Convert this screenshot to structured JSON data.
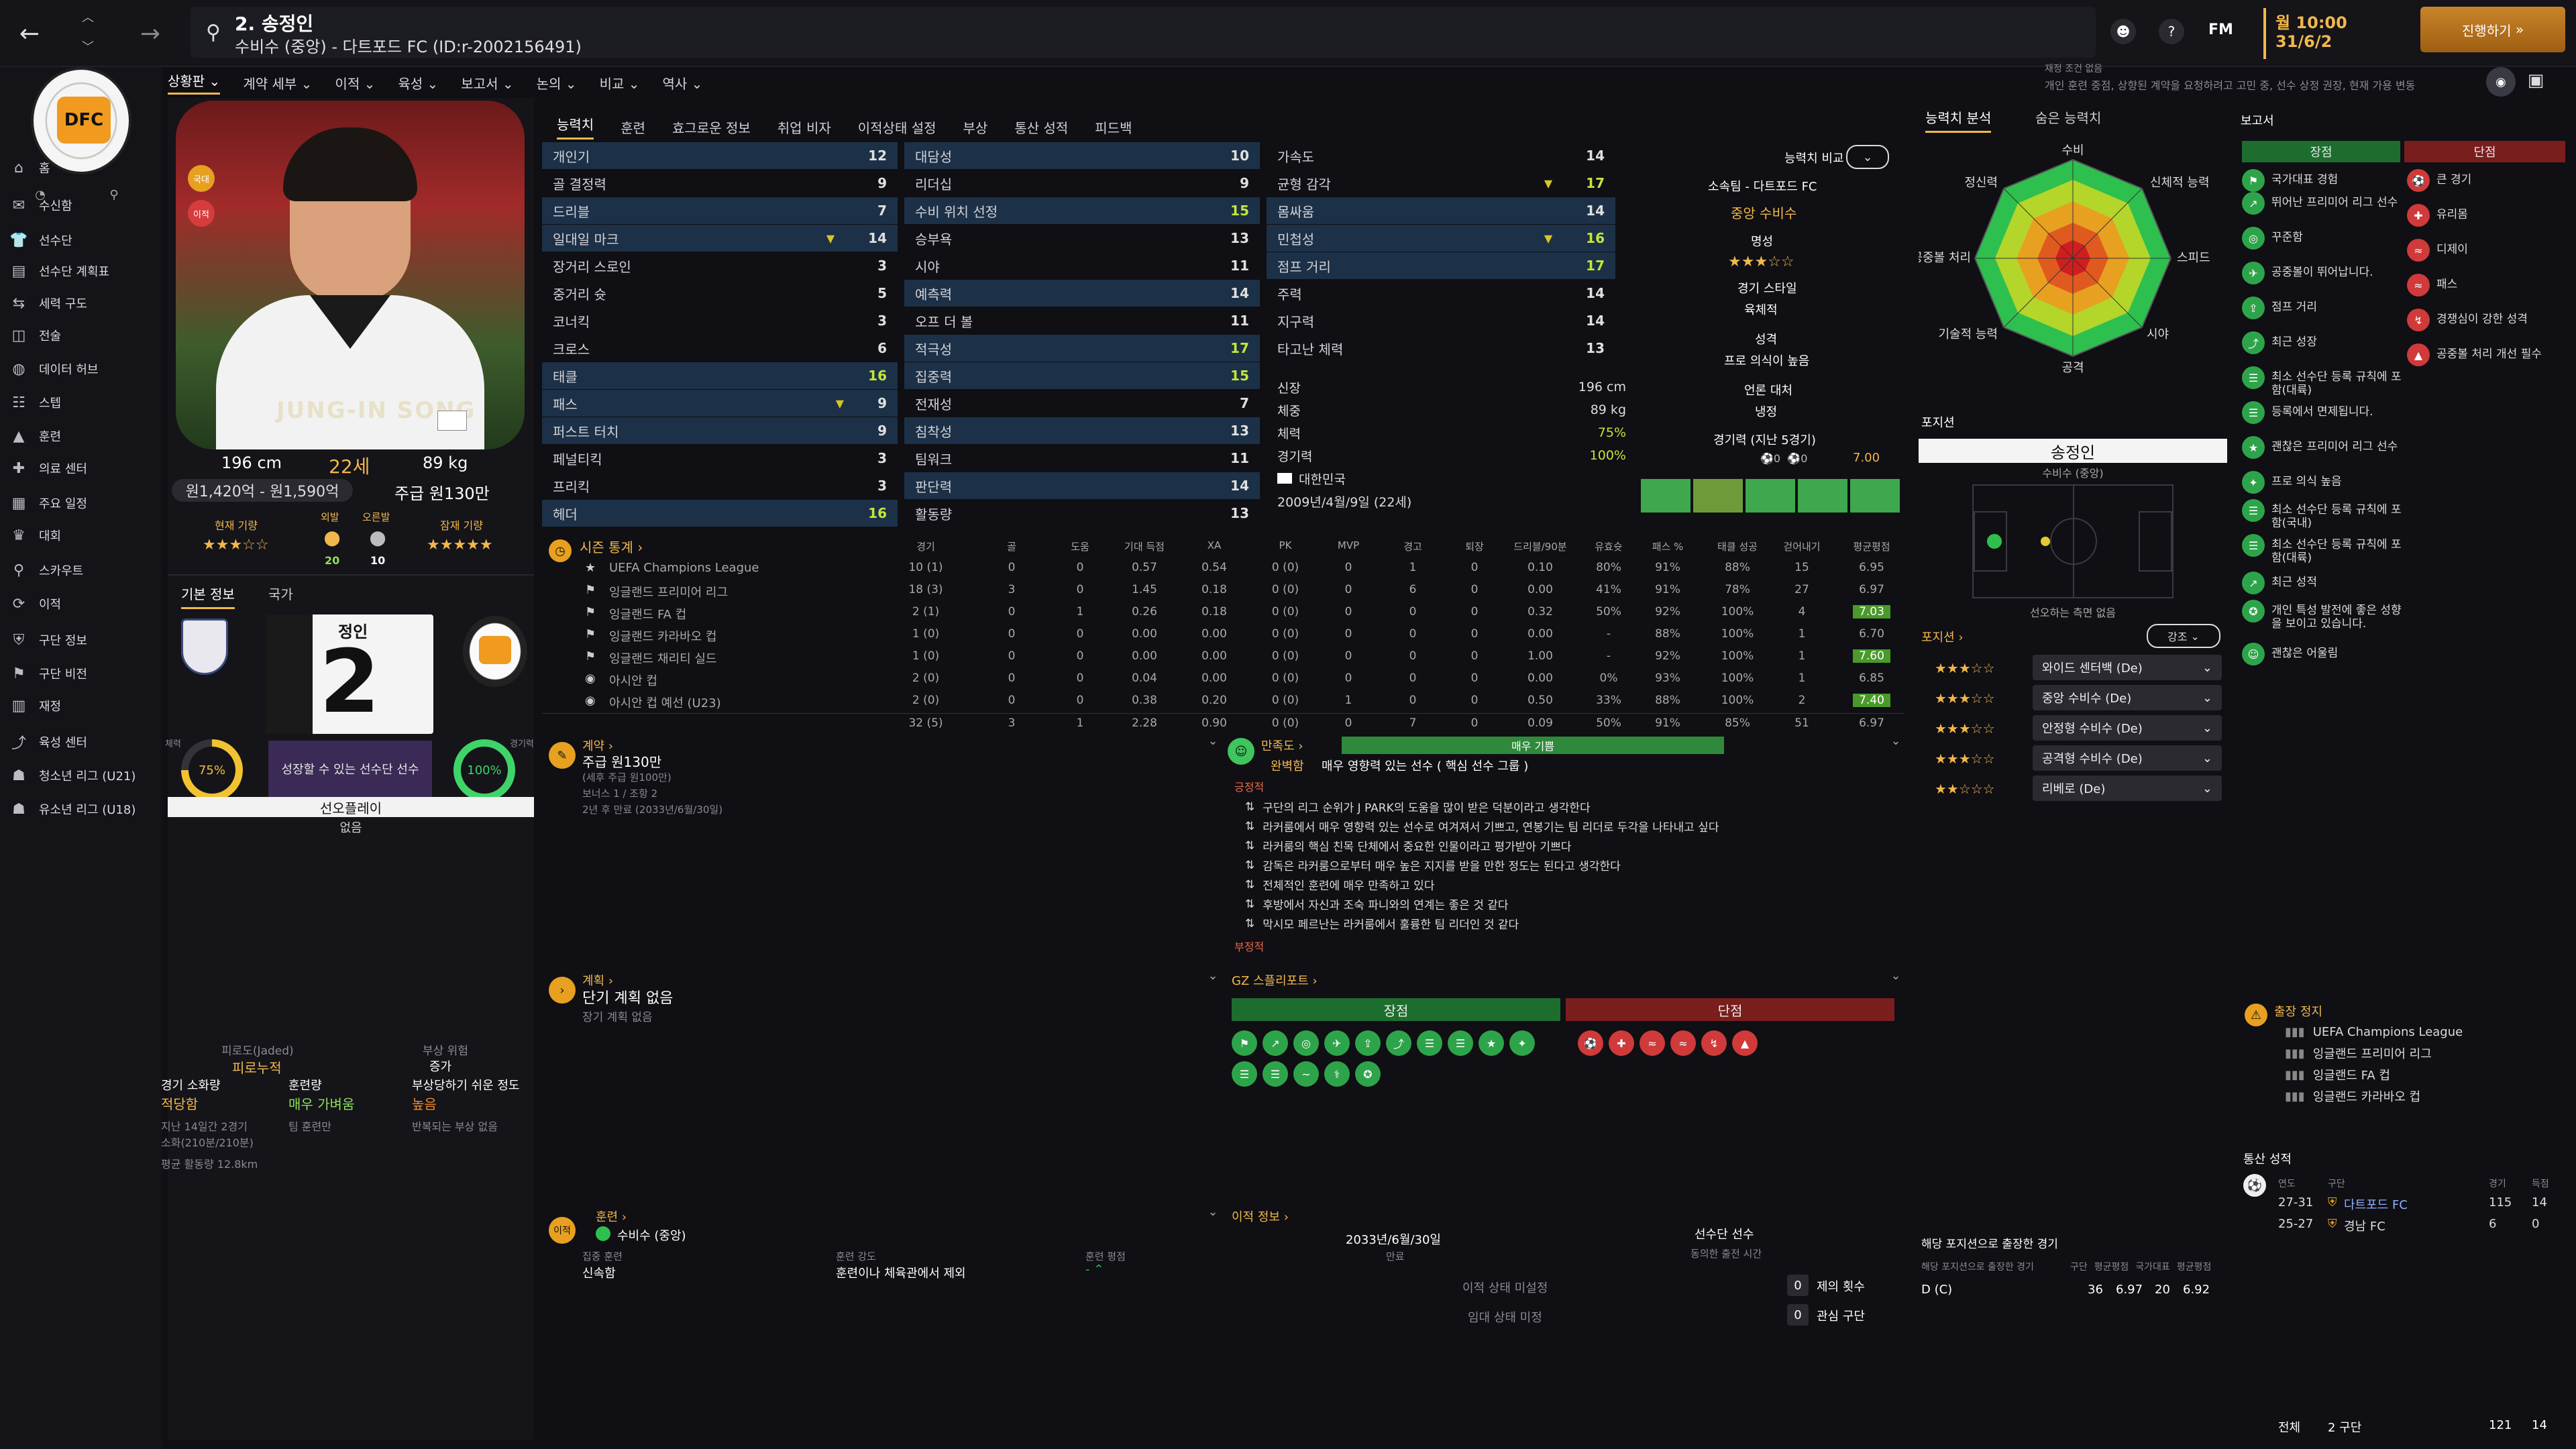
{
  "header": {
    "player_title": "2. 송정인",
    "player_subtitle": "수비수 (중앙) - 다트포드 FC (ID:r-2002156491)",
    "date_time": "월 10:00",
    "date": "31/6/2",
    "continue_label": "진행하기",
    "fm_label": "FM",
    "notice_line1": "재정 조건 없음",
    "notice_line2": "개인 훈련 중점, 상향된 계약을 요청하려고 고민 중, 선수 상정 권장, 현재 가용 변동"
  },
  "subnav": [
    "상황판",
    "계약 세부",
    "이적",
    "육성",
    "보고서",
    "논의",
    "비교",
    "역사"
  ],
  "sidebar": {
    "items": [
      {
        "icon": "home-icon",
        "label": "홈"
      },
      {
        "icon": "inbox-icon",
        "label": "수신함"
      },
      {
        "icon": "shirt-icon",
        "label": "선수단"
      },
      {
        "icon": "plan-icon",
        "label": "선수단 계획표"
      },
      {
        "icon": "tactics-icon",
        "label": "세력 구도"
      },
      {
        "icon": "tactic-board-icon",
        "label": "전술"
      },
      {
        "icon": "data-icon",
        "label": "데이터 허브"
      },
      {
        "icon": "staff-icon",
        "label": "스텝"
      },
      {
        "icon": "training-icon",
        "label": "훈련"
      },
      {
        "icon": "medical-icon",
        "label": "의료 센터"
      },
      {
        "icon": "calendar-icon",
        "label": "주요 일정"
      },
      {
        "icon": "trophy-icon",
        "label": "대회"
      },
      {
        "icon": "scouting-icon",
        "label": "스카우트"
      },
      {
        "icon": "transfer-icon",
        "label": "이적"
      },
      {
        "icon": "club-icon",
        "label": "구단 정보"
      },
      {
        "icon": "vision-icon",
        "label": "구단 비전"
      },
      {
        "icon": "finance-icon",
        "label": "재정"
      },
      {
        "icon": "dev-icon",
        "label": "육성 센터"
      },
      {
        "icon": "u21-icon",
        "label": "청소년 리그 (U21)"
      },
      {
        "icon": "u18-icon",
        "label": "유소년 리그 (U18)"
      }
    ]
  },
  "player": {
    "shirt_name": "JUNG-IN SONG",
    "height": "196 cm",
    "age": "22세",
    "weight": "89 kg",
    "value_range": "원1,420억 - 원1,590억",
    "wage": "주급 원130만",
    "current_ability_label": "현재 기량",
    "potential_ability_label": "잠재 기량",
    "badge1_label": "외발",
    "badge1_value": "20",
    "badge2_label": "오른발",
    "badge2_value": "10",
    "tab_basic": "기본 정보",
    "tab_nation": "국가",
    "shirt_number": "2",
    "shirt_top_name": "정인",
    "fitness_label": "체력",
    "fitness_value": "75%",
    "match_label": "경기력",
    "match_value": "100%",
    "status_text": "성장할 수 있는 선수단 선수",
    "role_label": "선오플레이",
    "role_value": "없음",
    "fatigue_label": "피로도(Jaded)",
    "fatigue_value": "피로누적",
    "injury_risk_label": "부상 위험",
    "injury_risk_value": "증가",
    "load_label": "경기 소화량",
    "load_value": "적당함",
    "training_label": "훈련량",
    "training_value": "매우 가벼움",
    "injury_prone_label": "부상당하기 쉬운 정도",
    "injury_prone_value": "높음",
    "detail1": "지난 14일간 2경기",
    "detail2": "소화(210분/210분)",
    "detail3": "평균 활동량 12.8km",
    "detail4": "팀 훈련만",
    "detail5": "반복되는 부상 없음"
  },
  "tabs": [
    "능력치",
    "훈련",
    "효그로운 정보",
    "취업 비자",
    "이적상태 설정",
    "부상",
    "통산 성적",
    "피드백"
  ],
  "attributes": {
    "technical": [
      {
        "name": "개인기",
        "value": "12",
        "hl": true
      },
      {
        "name": "골 결정력",
        "value": "9"
      },
      {
        "name": "드리블",
        "value": "7",
        "hl": true
      },
      {
        "name": "일대일 마크",
        "value": "14",
        "hl": true,
        "arrow": true
      },
      {
        "name": "장거리 스로인",
        "value": "3"
      },
      {
        "name": "중거리 슛",
        "value": "5"
      },
      {
        "name": "코너킥",
        "value": "3"
      },
      {
        "name": "크로스",
        "value": "6"
      },
      {
        "name": "태클",
        "value": "16",
        "hl": true,
        "g": true
      },
      {
        "name": "패스",
        "value": "9",
        "hl": true,
        "arrow": true
      },
      {
        "name": "퍼스트 터치",
        "value": "9",
        "hl": true
      },
      {
        "name": "페널티킥",
        "value": "3"
      },
      {
        "name": "프리킥",
        "value": "3"
      },
      {
        "name": "헤더",
        "value": "16",
        "hl": true,
        "g": true
      }
    ],
    "mental": [
      {
        "name": "대담성",
        "value": "10",
        "hl": true
      },
      {
        "name": "리더십",
        "value": "9"
      },
      {
        "name": "수비 위치 선정",
        "value": "15",
        "hl": true,
        "g": true
      },
      {
        "name": "승부욕",
        "value": "13"
      },
      {
        "name": "시야",
        "value": "11"
      },
      {
        "name": "예측력",
        "value": "14",
        "hl": true
      },
      {
        "name": "오프 더 볼",
        "value": "11"
      },
      {
        "name": "적극성",
        "value": "17",
        "hl": true,
        "g": true
      },
      {
        "name": "집중력",
        "value": "15",
        "hl": true,
        "g": true
      },
      {
        "name": "전재성",
        "value": "7"
      },
      {
        "name": "침착성",
        "value": "13",
        "hl": true
      },
      {
        "name": "팀워크",
        "value": "11"
      },
      {
        "name": "판단력",
        "value": "14",
        "hl": true
      },
      {
        "name": "활동량",
        "value": "13"
      }
    ],
    "physical": [
      {
        "name": "가속도",
        "value": "14"
      },
      {
        "name": "균형 감각",
        "value": "17",
        "g": true,
        "arrow": true
      },
      {
        "name": "몸싸움",
        "value": "14",
        "hl": true
      },
      {
        "name": "민첩성",
        "value": "16",
        "hl": true,
        "g": true,
        "arrow": true
      },
      {
        "name": "점프 거리",
        "value": "17",
        "hl": true,
        "g": true
      },
      {
        "name": "주력",
        "value": "14"
      },
      {
        "name": "지구력",
        "value": "14"
      },
      {
        "name": "타고난 체력",
        "value": "13"
      }
    ],
    "info": [
      {
        "label": "신장",
        "value": "196 cm"
      },
      {
        "label": "체중",
        "value": "89 kg"
      },
      {
        "label": "체력",
        "value": "75%"
      },
      {
        "label": "경기력",
        "value": "100%"
      },
      {
        "label": "nation",
        "value": "대한민국"
      },
      {
        "label": "dob",
        "value": "2009년/4월/9일 (22세)"
      }
    ]
  },
  "compare": {
    "title": "능력치 비교",
    "club": "소속팀 - 다트포드 FC",
    "position": "중앙 수비수",
    "fame_label": "명성",
    "style_label": "경기 스타일",
    "style_value": "육체적",
    "personality_label": "성격",
    "personality_value": "프로 의식이 높음",
    "media_label": "언론 대처",
    "media_value": "냉정",
    "form_label": "경기력 (지난 5경기)",
    "form_c1": "0",
    "form_c2": "0",
    "form_avg": "7.00"
  },
  "radar": {
    "tab1": "능력치 분석",
    "tab2": "숨은 능력치",
    "labels": [
      "수비",
      "신체적 능력",
      "스피드",
      "시야",
      "공격",
      "기술적 능력",
      "공중볼 처리",
      "정신력"
    ]
  },
  "position_panel": {
    "title": "포지션",
    "name": "송정인",
    "role": "수비수 (중앙)",
    "caption": "선오하는 측면 없음",
    "list_title": "포지션",
    "filter_label": "강조",
    "roles": [
      {
        "name": "와이드 센터백 (De)",
        "stars": "★★★☆☆"
      },
      {
        "name": "중앙 수비수 (De)",
        "stars": "★★★☆☆"
      },
      {
        "name": "안정형 수비수 (De)",
        "stars": "★★★☆☆"
      },
      {
        "name": "공격형 수비수 (De)",
        "stars": "★★★☆☆"
      },
      {
        "name": "리베로 (De)",
        "stars": "★★☆☆☆"
      }
    ],
    "experience_title": "해당 포지션으로 출장한 경기",
    "experience_sub": "해당 포지션으로 출장한 경기",
    "exp_cols": [
      "구단",
      "평균평점",
      "국가대표",
      "평균평점"
    ],
    "exp_row": {
      "pos": "D (C)",
      "apps": "36",
      "rating": "6.97",
      "intl": "20",
      "intl_rating": "6.92"
    }
  },
  "report": {
    "title": "보고서",
    "pros_label": "장점",
    "cons_label": "단점",
    "pros": [
      "국가대표 경험",
      "뛰어난 프리미어 리그 선수",
      "꾸준함",
      "공중볼이 뛰어납니다.",
      "점프 거리",
      "최근 성장",
      "최소 선수단 등록 규칙에 포함(대륙)",
      "등록에서 면제됩니다.",
      "괜찮은 프리미어 리그 선수",
      "프로 의식 높음",
      "최소 선수단 등록 규칙에 포함(국내)",
      "최소 선수단 등록 규칙에 포함(대륙)",
      "최근 성적",
      "개인 특성 발전에 좋은 성향을 보이고 있습니다.",
      "괜찮은 어울림"
    ],
    "cons": [
      "큰 경기",
      "유리몸",
      "디제이",
      "패스",
      "경쟁심이 강한 성격",
      "공중볼 처리 개선 필수"
    ]
  },
  "stats": {
    "title": "시즌 통계",
    "cols": [
      "경기",
      "골",
      "도움",
      "기대 득점",
      "XA",
      "PK",
      "MVP",
      "경고",
      "퇴장",
      "드리블/90분",
      "유효슛",
      "패스 %",
      "태클 성공",
      "걷어내기",
      "평균평점"
    ],
    "rows": [
      {
        "comp": "UEFA Champions League",
        "v": [
          "10 (1)",
          "0",
          "0",
          "0.57",
          "0.54",
          "0 (0)",
          "0",
          "1",
          "0",
          "0.10",
          "80%",
          "91%",
          "88%",
          "15",
          "6.95"
        ]
      },
      {
        "comp": "잉글랜드 프리미어 리그",
        "v": [
          "18 (3)",
          "3",
          "0",
          "1.45",
          "0.18",
          "0 (0)",
          "0",
          "6",
          "0",
          "0.00",
          "41%",
          "91%",
          "78%",
          "27",
          "6.97"
        ]
      },
      {
        "comp": "잉글랜드 FA 컵",
        "v": [
          "2 (1)",
          "0",
          "1",
          "0.26",
          "0.18",
          "0 (0)",
          "0",
          "0",
          "0",
          "0.32",
          "50%",
          "92%",
          "100%",
          "4",
          "7.03"
        ]
      },
      {
        "comp": "잉글랜드 카라바오 컵",
        "v": [
          "1 (0)",
          "0",
          "0",
          "0.00",
          "0.00",
          "0 (0)",
          "0",
          "0",
          "0",
          "0.00",
          "-",
          "88%",
          "100%",
          "1",
          "6.70"
        ]
      },
      {
        "comp": "잉글랜드 채리티 실드",
        "v": [
          "1 (0)",
          "0",
          "0",
          "0.00",
          "0.00",
          "0 (0)",
          "0",
          "0",
          "0",
          "1.00",
          "-",
          "92%",
          "100%",
          "1",
          "7.60"
        ]
      },
      {
        "comp": "아시안 컵",
        "v": [
          "2 (0)",
          "0",
          "0",
          "0.04",
          "0.00",
          "0 (0)",
          "0",
          "0",
          "0",
          "0.00",
          "0%",
          "93%",
          "100%",
          "1",
          "6.85"
        ]
      },
      {
        "comp": "아시안 컵 예선 (U23)",
        "v": [
          "2 (0)",
          "0",
          "0",
          "0.38",
          "0.20",
          "0 (0)",
          "1",
          "0",
          "0",
          "0.50",
          "33%",
          "88%",
          "100%",
          "2",
          "7.40"
        ]
      }
    ],
    "total": [
      "32 (5)",
      "3",
      "1",
      "2.28",
      "0.90",
      "0 (0)",
      "0",
      "7",
      "0",
      "0.09",
      "50%",
      "91%",
      "85%",
      "51",
      "6.97"
    ]
  },
  "contract": {
    "title": "계약",
    "wage": "주급 원130만",
    "wage_sub": "(세후 주급 원100만)",
    "bonus": "보너스 1 / 조항 2",
    "expiry": "2년 후 만료 (2033년/6월/30일)"
  },
  "satisfaction": {
    "title": "만족도",
    "level": "매우 기쁨",
    "summary_label": "완벽함",
    "summary": "매우 영향력 있는 선수 ( 핵심 선수 그룹 )",
    "positive_label": "긍정적",
    "negative_label": "부정적",
    "items": [
      "구단의 리그 순위가 J PARK의 도움을 많이 받은 덕분이라고 생각한다",
      "라커룸에서 매우 영향력 있는 선수로 여겨져서 기쁘고, 연봉기는 팀 리더로 두각을 나타내고 싶다",
      "라커룸의 핵심 친목 단체에서 중요한 인물이라고 평가받아 기쁘다",
      "감독은 라커룸으로부터 매우 높은 지지를 받을 만한 정도는 된다고 생각한다",
      "전체적인 훈련에 매우 만족하고 있다",
      "후방에서 자신과 조숙 파니와의 연계는 좋은 것 같다",
      "막시모 페르난는 라커룸에서 훌륭한 팀 리더인 것 같다"
    ]
  },
  "plan": {
    "title": "계획",
    "short": "단기 계획 없음",
    "long": "장기 계획 없음"
  },
  "scout": {
    "title": "GZ 스플리포트",
    "pros": "장점",
    "cons": "단점"
  },
  "training": {
    "title": "훈련",
    "position": "수비수 (중앙)",
    "focus_label": "집중 훈련",
    "focus_value": "신속함",
    "intensity_label": "훈련 강도",
    "intensity_value": "훈련이나 체육관에서 제외",
    "rating_label": "훈련 평점",
    "rating_value": "-"
  },
  "transfer": {
    "title": "이적 정보",
    "expiry": "2033년/6월/30일",
    "expiry_label": "만료",
    "squad_status": "선수단 선수",
    "squad_label": "동의한 출전 시간",
    "status1": "이적 상태 미설정",
    "status2": "임대 상태 미정",
    "count1": "0",
    "label1": "제의 횟수",
    "count2": "0",
    "label2": "관심 구단"
  },
  "suspension": {
    "title": "출장 정지",
    "items": [
      "UEFA Champions League",
      "잉글랜드 프리미어 리그",
      "잉글랜드 FA 컵",
      "잉글랜드 카라바오 컵"
    ]
  },
  "career": {
    "title": "통산 성적",
    "cols": [
      "연도",
      "구단",
      "경기",
      "득점"
    ],
    "rows": [
      {
        "year": "27-31",
        "club": "다트포드 FC",
        "apps": "115",
        "goals": "14"
      },
      {
        "year": "25-27",
        "club": "경남 FC",
        "apps": "6",
        "goals": "0"
      }
    ],
    "total_label": "전체",
    "total_clubs": "2 구단",
    "total_apps": "121",
    "total_goals": "14"
  },
  "colors": {
    "accent": "#f2b84b",
    "good": "#8fe05a",
    "bad": "#e14b4b",
    "highlight": "#1c3147"
  }
}
